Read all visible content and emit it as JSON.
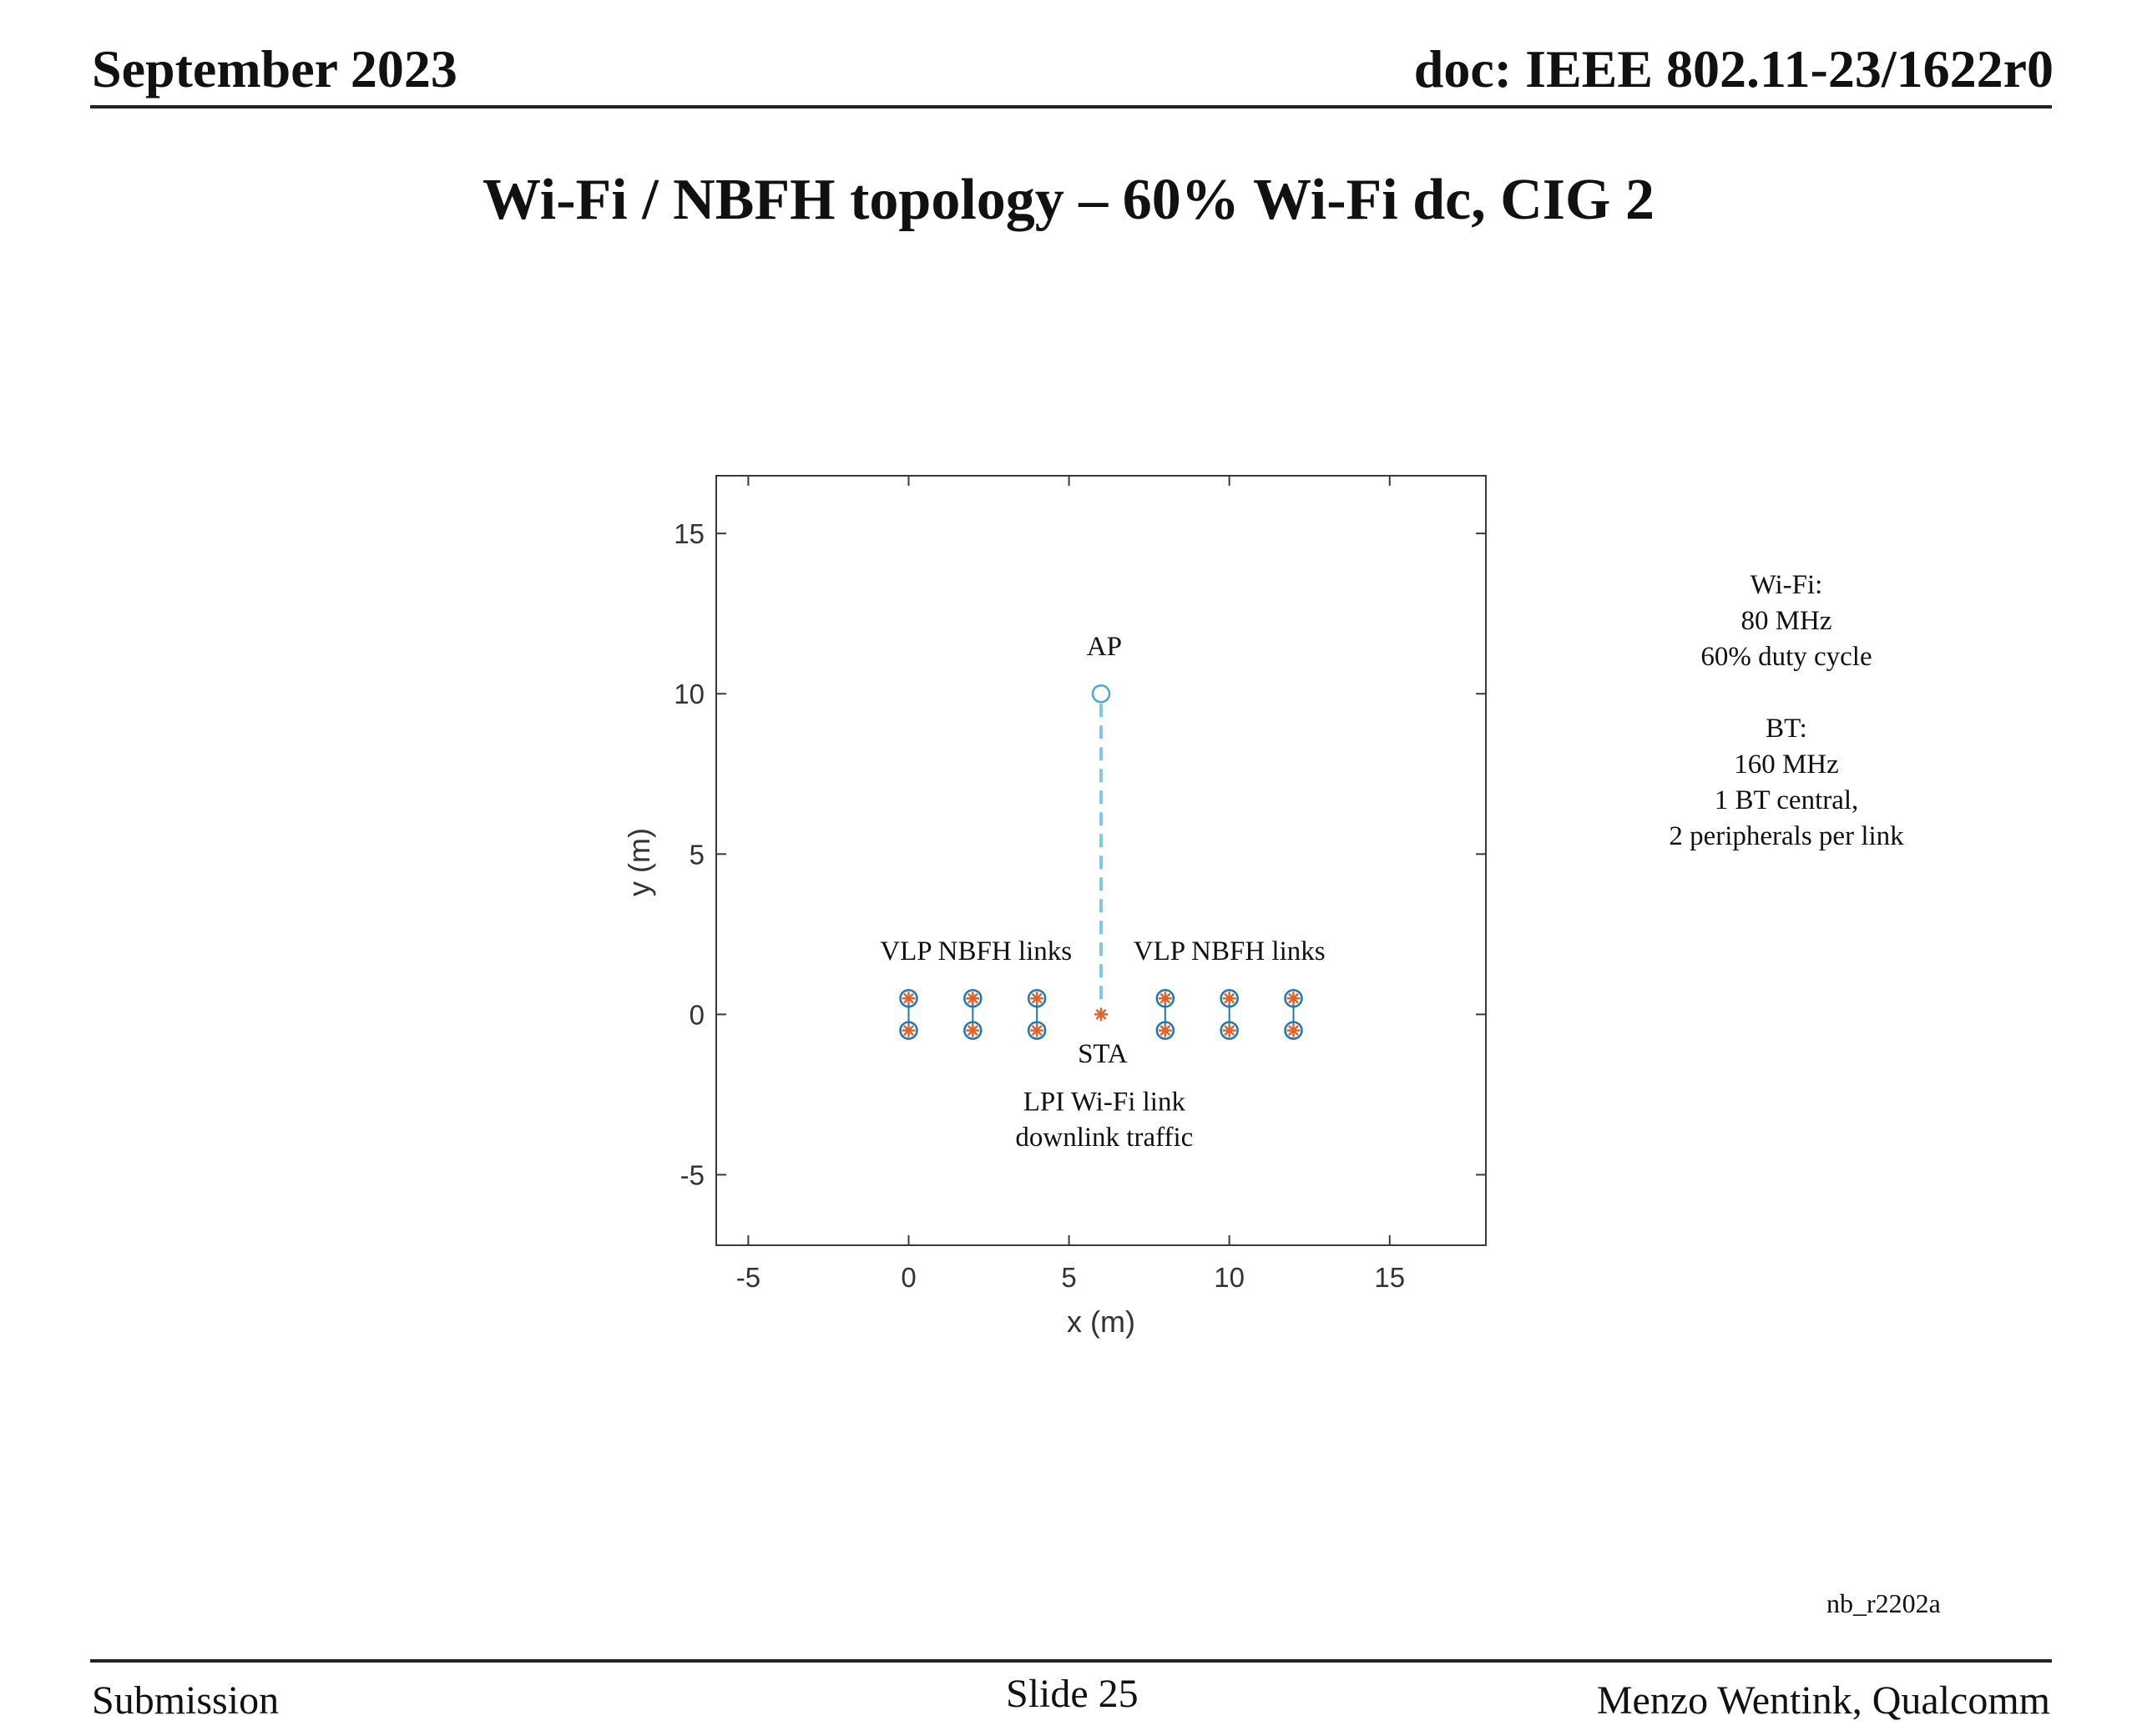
{
  "header": {
    "date": "September 2023",
    "doc": "doc: IEEE 802.11-23/1622r0"
  },
  "slide_title": "Wi-Fi / NBFH topology – 60% Wi-Fi dc, CIG 2",
  "chart_data": {
    "type": "scatter",
    "title": "",
    "xlabel": "x (m)",
    "ylabel": "y (m)",
    "xlim": [
      -6,
      18
    ],
    "ylim": [
      -7.2,
      16.8
    ],
    "xticks": [
      -5,
      0,
      5,
      10,
      15
    ],
    "yticks": [
      -5,
      0,
      5,
      10,
      15
    ],
    "grid": false,
    "series": [
      {
        "marker": "circle",
        "color": "#1f77b4",
        "x": [
          0,
          2,
          4,
          8,
          10,
          12
        ],
        "y": [
          0.5,
          0.5,
          0.5,
          0.5,
          0.5,
          0.5
        ]
      },
      {
        "marker": "circle",
        "color": "#1f77b4",
        "x": [
          0,
          2,
          4,
          8,
          10,
          12
        ],
        "y": [
          -0.5,
          -0.5,
          -0.5,
          -0.5,
          -0.5,
          -0.5
        ]
      },
      {
        "marker": "asterisk",
        "color": "#e0642a",
        "x": [
          0,
          2,
          4,
          8,
          10,
          12
        ],
        "y": [
          0.5,
          0.5,
          0.5,
          0.5,
          0.5,
          0.5
        ]
      },
      {
        "marker": "asterisk",
        "color": "#e0642a",
        "x": [
          0,
          2,
          4,
          8,
          10,
          12
        ],
        "y": [
          -0.5,
          -0.5,
          -0.5,
          -0.5,
          -0.5,
          -0.5
        ]
      },
      {
        "marker": "circle",
        "color": "#4aa7d8",
        "x": [
          6
        ],
        "y": [
          10
        ]
      },
      {
        "marker": "asterisk",
        "color": "#e0642a",
        "x": [
          6
        ],
        "y": [
          0
        ]
      }
    ],
    "link": {
      "from": [
        6,
        10
      ],
      "to": [
        6,
        0
      ],
      "style": "dashed",
      "color": "#7fc7ec"
    },
    "annotations": [
      {
        "text": "AP",
        "x": 6.1,
        "y": 11.2
      },
      {
        "text": "VLP NBFH links",
        "x": 2.1,
        "y": 1.7
      },
      {
        "text": "VLP NBFH links",
        "x": 10.0,
        "y": 1.7
      },
      {
        "text": "STA",
        "x": 6.05,
        "y": -1.5
      },
      {
        "text": "LPI Wi-Fi link",
        "x": 6.1,
        "y": -3.0
      },
      {
        "text": "downlink traffic",
        "x": 6.1,
        "y": -4.1
      }
    ]
  },
  "side_note": {
    "lines_wifi": [
      "Wi-Fi:",
      "80 MHz",
      "60% duty cycle"
    ],
    "lines_bt": [
      "BT:",
      "160 MHz",
      "1 BT central,",
      "2 peripherals per link"
    ]
  },
  "figure_code": "nb_r2202a",
  "footer": {
    "left": "Submission",
    "center": "Slide 25",
    "right": "Menzo Wentink, Qualcomm"
  }
}
